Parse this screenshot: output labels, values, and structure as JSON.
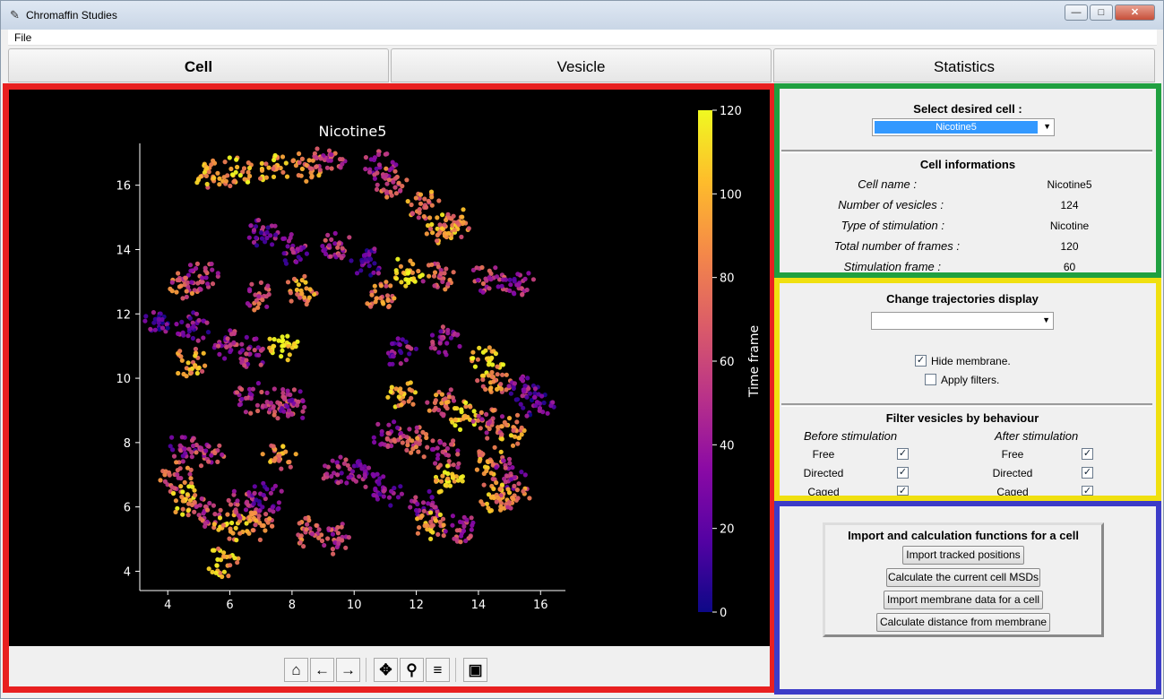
{
  "window": {
    "title": "Chromaffin Studies",
    "controls": [
      "―",
      "□",
      "✕"
    ]
  },
  "menu": {
    "file": "File"
  },
  "tabs": [
    {
      "label": "Cell"
    },
    {
      "label": "Vesicle"
    },
    {
      "label": "Statistics"
    }
  ],
  "toolbar": {
    "icons": [
      "home-icon",
      "back-arrow-icon",
      "forward-arrow-icon",
      "pan-icon",
      "zoom-icon",
      "configure-subplots-icon",
      "save-icon"
    ],
    "glyphs": [
      "⌂",
      "←",
      "→",
      "✥",
      "⚲",
      "≡",
      "▣"
    ]
  },
  "cell_select": {
    "title": "Select desired cell :",
    "selected": "Nicotine5"
  },
  "cell_info": {
    "title": "Cell informations",
    "rows": [
      {
        "label": "Cell name :",
        "value": "Nicotine5"
      },
      {
        "label": "Number of vesicles :",
        "value": "124"
      },
      {
        "label": "Type of stimulation :",
        "value": "Nicotine"
      },
      {
        "label": "Total number of frames :",
        "value": "120"
      },
      {
        "label": "Stimulation frame :",
        "value": "60"
      }
    ]
  },
  "trajectories": {
    "title": "Change trajectories display",
    "selected": "",
    "hide_membrane": {
      "label": "Hide membrane.",
      "checked": true
    },
    "apply_filters": {
      "label": "Apply filters.",
      "checked": false
    }
  },
  "filters": {
    "title": "Filter vesicles by behaviour",
    "before": "Before stimulation",
    "after": "After stimulation",
    "rows": [
      {
        "label": "Free",
        "before": true,
        "after": true
      },
      {
        "label": "Directed",
        "before": true,
        "after": true
      },
      {
        "label": "Caged",
        "before": true,
        "after": true
      }
    ]
  },
  "import_panel": {
    "title": "Import and calculation functions for a cell",
    "buttons": [
      "Import tracked positions",
      "Calculate the current cell MSDs",
      "Import membrane data for a cell",
      "Calculate distance from membrane"
    ]
  },
  "chart_data": {
    "type": "scatter",
    "title": "Nicotine5",
    "xlabel": "",
    "ylabel": "",
    "xlim": [
      3.1,
      16.8
    ],
    "ylim": [
      3.4,
      17.3
    ],
    "xticks": [
      "4",
      "6",
      "8",
      "10",
      "12",
      "14",
      "16"
    ],
    "yticks": [
      "4",
      "6",
      "8",
      "10",
      "12",
      "14",
      "16"
    ],
    "background": "#000000",
    "colormap": "plasma",
    "colorbar": {
      "label": "Time frame",
      "range": [
        0,
        120
      ],
      "ticks": [
        "0",
        "20",
        "40",
        "60",
        "80",
        "100",
        "120"
      ]
    },
    "clusters": [
      {
        "x": 5.4,
        "y": 16.3,
        "t": 90
      },
      {
        "x": 6.2,
        "y": 16.4,
        "t": 100
      },
      {
        "x": 7.4,
        "y": 16.5,
        "t": 95
      },
      {
        "x": 8.5,
        "y": 16.6,
        "t": 80
      },
      {
        "x": 9.2,
        "y": 16.9,
        "t": 60
      },
      {
        "x": 10.8,
        "y": 16.6,
        "t": 45
      },
      {
        "x": 11.2,
        "y": 16.1,
        "t": 70
      },
      {
        "x": 12.2,
        "y": 15.4,
        "t": 80
      },
      {
        "x": 12.8,
        "y": 14.6,
        "t": 95
      },
      {
        "x": 13.3,
        "y": 14.8,
        "t": 85
      },
      {
        "x": 11.7,
        "y": 13.3,
        "t": 115
      },
      {
        "x": 12.7,
        "y": 13.2,
        "t": 70
      },
      {
        "x": 14.3,
        "y": 13.1,
        "t": 55
      },
      {
        "x": 15.3,
        "y": 12.9,
        "t": 40
      },
      {
        "x": 9.4,
        "y": 14.2,
        "t": 50
      },
      {
        "x": 8.0,
        "y": 14.0,
        "t": 35
      },
      {
        "x": 7.0,
        "y": 14.5,
        "t": 30
      },
      {
        "x": 10.4,
        "y": 13.6,
        "t": 25
      },
      {
        "x": 8.3,
        "y": 12.7,
        "t": 85
      },
      {
        "x": 10.8,
        "y": 12.6,
        "t": 80
      },
      {
        "x": 6.9,
        "y": 12.6,
        "t": 60
      },
      {
        "x": 4.6,
        "y": 12.9,
        "t": 70
      },
      {
        "x": 5.1,
        "y": 13.2,
        "t": 55
      },
      {
        "x": 3.8,
        "y": 11.8,
        "t": 20
      },
      {
        "x": 4.8,
        "y": 11.6,
        "t": 30
      },
      {
        "x": 5.9,
        "y": 11.1,
        "t": 45
      },
      {
        "x": 7.7,
        "y": 11.0,
        "t": 118
      },
      {
        "x": 6.7,
        "y": 10.8,
        "t": 40
      },
      {
        "x": 4.7,
        "y": 10.5,
        "t": 90
      },
      {
        "x": 11.5,
        "y": 10.8,
        "t": 35
      },
      {
        "x": 12.9,
        "y": 11.2,
        "t": 45
      },
      {
        "x": 14.3,
        "y": 10.6,
        "t": 105
      },
      {
        "x": 14.5,
        "y": 9.9,
        "t": 85
      },
      {
        "x": 15.5,
        "y": 9.6,
        "t": 30
      },
      {
        "x": 15.9,
        "y": 9.2,
        "t": 20
      },
      {
        "x": 11.6,
        "y": 9.5,
        "t": 95
      },
      {
        "x": 12.8,
        "y": 9.3,
        "t": 75
      },
      {
        "x": 13.6,
        "y": 8.8,
        "t": 110
      },
      {
        "x": 14.3,
        "y": 8.6,
        "t": 65
      },
      {
        "x": 15.1,
        "y": 8.4,
        "t": 90
      },
      {
        "x": 6.7,
        "y": 9.4,
        "t": 50
      },
      {
        "x": 7.6,
        "y": 9.2,
        "t": 60
      },
      {
        "x": 8.1,
        "y": 9.2,
        "t": 40
      },
      {
        "x": 11.1,
        "y": 8.2,
        "t": 50
      },
      {
        "x": 12.0,
        "y": 8.0,
        "t": 70
      },
      {
        "x": 13.0,
        "y": 7.6,
        "t": 60
      },
      {
        "x": 14.3,
        "y": 7.4,
        "t": 85
      },
      {
        "x": 15.0,
        "y": 7.0,
        "t": 45
      },
      {
        "x": 13.0,
        "y": 6.8,
        "t": 112
      },
      {
        "x": 14.5,
        "y": 6.3,
        "t": 90
      },
      {
        "x": 15.1,
        "y": 6.3,
        "t": 75
      },
      {
        "x": 11.0,
        "y": 6.5,
        "t": 30
      },
      {
        "x": 12.3,
        "y": 6.0,
        "t": 40
      },
      {
        "x": 4.5,
        "y": 7.8,
        "t": 40
      },
      {
        "x": 5.3,
        "y": 7.7,
        "t": 55
      },
      {
        "x": 7.6,
        "y": 7.6,
        "t": 85
      },
      {
        "x": 9.5,
        "y": 7.1,
        "t": 45
      },
      {
        "x": 10.3,
        "y": 7.0,
        "t": 35
      },
      {
        "x": 4.3,
        "y": 6.9,
        "t": 70
      },
      {
        "x": 4.6,
        "y": 6.2,
        "t": 100
      },
      {
        "x": 5.2,
        "y": 5.8,
        "t": 60
      },
      {
        "x": 6.0,
        "y": 5.4,
        "t": 95
      },
      {
        "x": 6.4,
        "y": 6.1,
        "t": 50
      },
      {
        "x": 7.2,
        "y": 6.3,
        "t": 30
      },
      {
        "x": 8.5,
        "y": 5.2,
        "t": 70
      },
      {
        "x": 9.5,
        "y": 5.0,
        "t": 55
      },
      {
        "x": 12.5,
        "y": 5.4,
        "t": 90
      },
      {
        "x": 13.4,
        "y": 5.3,
        "t": 55
      },
      {
        "x": 5.8,
        "y": 4.3,
        "t": 100
      },
      {
        "x": 6.9,
        "y": 5.4,
        "t": 80
      }
    ]
  }
}
